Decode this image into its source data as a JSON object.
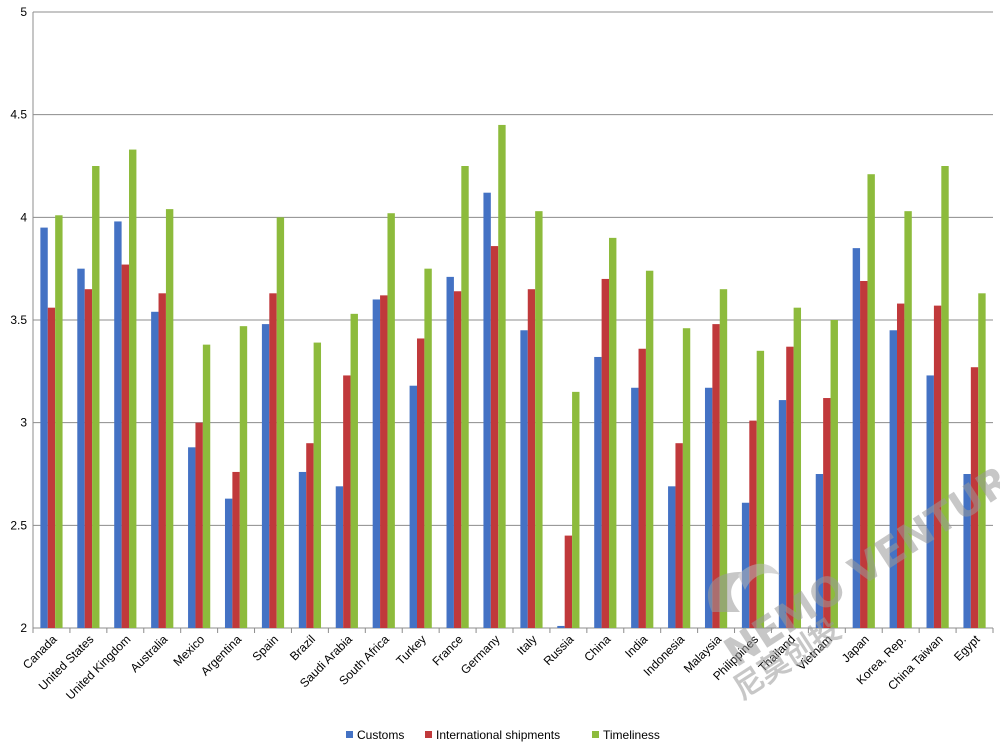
{
  "chart_data": {
    "type": "bar",
    "title": "",
    "xlabel": "",
    "ylabel": "",
    "ylim": [
      2,
      5
    ],
    "yticks": [
      2,
      2.5,
      3,
      3.5,
      4,
      4.5,
      5
    ],
    "ytick_labels": [
      "2",
      "2.5",
      "3",
      "3.5",
      "4",
      "4.5",
      "5"
    ],
    "grid": true,
    "legend_position": "bottom",
    "categories": [
      "Canada",
      "United States",
      "United Kingdom",
      "Australia",
      "Mexico",
      "Argentina",
      "Spain",
      "Brazil",
      "Saudi Arabia",
      "South Africa",
      "Turkey",
      "France",
      "Germany",
      "Italy",
      "Russia",
      "China",
      "India",
      "Indonesia",
      "Malaysia",
      "Philippines",
      "Thailand",
      "Vietnam",
      "Japan",
      "Korea, Rep.",
      "China Taiwan",
      "Egypt"
    ],
    "series": [
      {
        "name": "Customs",
        "color": "#4472C4",
        "values": [
          3.95,
          3.75,
          3.98,
          3.54,
          2.88,
          2.63,
          3.48,
          2.76,
          2.69,
          3.6,
          3.18,
          3.71,
          4.12,
          3.45,
          2.01,
          3.32,
          3.17,
          2.69,
          3.17,
          2.61,
          3.11,
          2.75,
          3.85,
          3.45,
          3.23,
          2.75
        ]
      },
      {
        "name": "International shipments",
        "color": "#C0393B",
        "values": [
          3.56,
          3.65,
          3.77,
          3.63,
          3.0,
          2.76,
          3.63,
          2.9,
          3.23,
          3.62,
          3.41,
          3.64,
          3.86,
          3.65,
          2.45,
          3.7,
          3.36,
          2.9,
          3.48,
          3.01,
          3.37,
          3.12,
          3.69,
          3.58,
          3.57,
          3.27
        ]
      },
      {
        "name": "Timeliness",
        "color": "#8DBB3C",
        "values": [
          4.01,
          4.25,
          4.33,
          4.04,
          3.38,
          3.47,
          4.0,
          3.39,
          3.53,
          4.02,
          3.75,
          4.25,
          4.45,
          4.03,
          3.15,
          3.9,
          3.74,
          3.46,
          3.65,
          3.35,
          3.56,
          3.5,
          4.21,
          4.03,
          4.25,
          3.63
        ]
      }
    ]
  },
  "watermark": {
    "brand_text": "NEMO VENTURES",
    "chinese_text": "尼莫创投",
    "color": "#9a9a9a"
  }
}
